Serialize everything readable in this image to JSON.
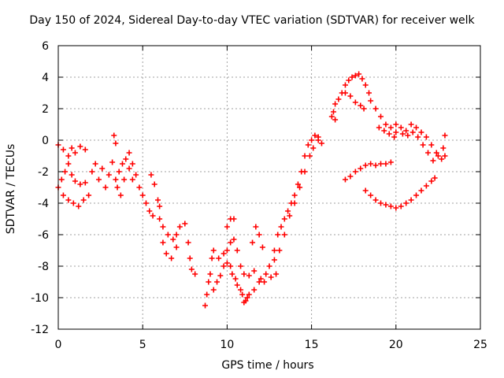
{
  "chart_data": {
    "type": "scatter",
    "title": "Day 150 of 2024, Sidereal Day-to-day VTEC variation (SDTVAR) for receiver welk",
    "xlabel": "GPS time / hours",
    "ylabel": "SDTVAR / TECUs",
    "xlim": [
      0,
      25
    ],
    "ylim": [
      -12,
      6
    ],
    "xticks": [
      "0",
      "5",
      "10",
      "15",
      "20",
      "25"
    ],
    "yticks": [
      "-12",
      "-10",
      "-8",
      "-6",
      "-4",
      "-2",
      "0",
      "2",
      "4",
      "6"
    ],
    "grid": true,
    "marker": "+",
    "color": "#ff0000",
    "series": [
      {
        "points": [
          [
            0.0,
            -0.3
          ],
          [
            0.3,
            -0.6
          ],
          [
            0.6,
            -1.0
          ],
          [
            0.8,
            -0.5
          ],
          [
            1.0,
            -0.8
          ],
          [
            1.3,
            -0.4
          ],
          [
            1.6,
            -0.6
          ],
          [
            0.0,
            -3.0
          ],
          [
            0.2,
            -2.5
          ],
          [
            0.4,
            -2.0
          ],
          [
            0.6,
            -1.5
          ],
          [
            0.8,
            -2.2
          ],
          [
            1.0,
            -2.6
          ],
          [
            1.3,
            -2.8
          ],
          [
            1.6,
            -2.7
          ],
          [
            0.3,
            -3.5
          ],
          [
            0.6,
            -3.8
          ],
          [
            0.9,
            -4.0
          ],
          [
            1.2,
            -4.2
          ],
          [
            1.5,
            -3.8
          ],
          [
            1.8,
            -3.5
          ],
          [
            2.0,
            -2.0
          ],
          [
            2.2,
            -1.5
          ],
          [
            2.4,
            -2.5
          ],
          [
            2.6,
            -1.8
          ],
          [
            2.8,
            -3.0
          ],
          [
            3.0,
            -2.2
          ],
          [
            3.2,
            -1.4
          ],
          [
            3.4,
            -2.5
          ],
          [
            3.6,
            -2.0
          ],
          [
            3.8,
            -1.5
          ],
          [
            4.0,
            -1.2
          ],
          [
            4.2,
            -1.8
          ],
          [
            4.4,
            -2.5
          ],
          [
            3.3,
            0.3
          ],
          [
            3.4,
            -0.2
          ],
          [
            3.5,
            -3.0
          ],
          [
            3.7,
            -3.5
          ],
          [
            3.9,
            -2.5
          ],
          [
            4.2,
            -0.8
          ],
          [
            4.4,
            -1.5
          ],
          [
            4.6,
            -2.2
          ],
          [
            4.8,
            -3.0
          ],
          [
            5.0,
            -3.5
          ],
          [
            5.2,
            -4.0
          ],
          [
            5.4,
            -4.5
          ],
          [
            5.6,
            -4.8
          ],
          [
            5.5,
            -2.2
          ],
          [
            5.7,
            -2.8
          ],
          [
            5.9,
            -3.8
          ],
          [
            6.0,
            -4.2
          ],
          [
            6.0,
            -5.0
          ],
          [
            6.2,
            -5.5
          ],
          [
            6.5,
            -6.0
          ],
          [
            6.8,
            -6.3
          ],
          [
            7.0,
            -6.0
          ],
          [
            7.2,
            -5.5
          ],
          [
            6.2,
            -6.5
          ],
          [
            6.4,
            -7.2
          ],
          [
            6.7,
            -7.5
          ],
          [
            7.0,
            -6.8
          ],
          [
            7.5,
            -5.3
          ],
          [
            7.7,
            -6.5
          ],
          [
            7.8,
            -7.5
          ],
          [
            7.9,
            -8.2
          ],
          [
            8.1,
            -8.5
          ],
          [
            8.7,
            -10.5
          ],
          [
            8.8,
            -9.8
          ],
          [
            8.9,
            -9.0
          ],
          [
            9.0,
            -8.5
          ],
          [
            9.1,
            -7.5
          ],
          [
            9.2,
            -7.0
          ],
          [
            9.2,
            -9.5
          ],
          [
            9.4,
            -9.0
          ],
          [
            9.6,
            -8.6
          ],
          [
            9.8,
            -8.0
          ],
          [
            10.0,
            -7.0
          ],
          [
            10.2,
            -6.5
          ],
          [
            10.4,
            -6.3
          ],
          [
            9.5,
            -7.5
          ],
          [
            9.8,
            -7.2
          ],
          [
            10.0,
            -7.8
          ],
          [
            10.3,
            -8.5
          ],
          [
            10.6,
            -9.2
          ],
          [
            10.9,
            -9.8
          ],
          [
            11.1,
            -10.2
          ],
          [
            11.3,
            -9.8
          ],
          [
            11.6,
            -9.5
          ],
          [
            11.9,
            -9.0
          ],
          [
            12.2,
            -9.0
          ],
          [
            10.2,
            -8.0
          ],
          [
            10.5,
            -8.8
          ],
          [
            10.8,
            -9.5
          ],
          [
            11.0,
            -10.3
          ],
          [
            11.2,
            -10.0
          ],
          [
            10.0,
            -5.5
          ],
          [
            10.2,
            -5.0
          ],
          [
            10.4,
            -5.0
          ],
          [
            10.6,
            -7.0
          ],
          [
            10.8,
            -8.0
          ],
          [
            11.0,
            -8.5
          ],
          [
            11.3,
            -8.6
          ],
          [
            11.6,
            -8.3
          ],
          [
            11.5,
            -6.5
          ],
          [
            11.7,
            -5.5
          ],
          [
            11.9,
            -6.0
          ],
          [
            12.1,
            -6.8
          ],
          [
            12.0,
            -8.8
          ],
          [
            12.3,
            -8.5
          ],
          [
            12.6,
            -8.7
          ],
          [
            12.9,
            -8.5
          ],
          [
            12.8,
            -7.0
          ],
          [
            13.0,
            -6.0
          ],
          [
            13.2,
            -5.5
          ],
          [
            13.4,
            -5.0
          ],
          [
            13.6,
            -4.5
          ],
          [
            13.8,
            -4.0
          ],
          [
            14.0,
            -3.5
          ],
          [
            14.2,
            -2.8
          ],
          [
            14.4,
            -2.0
          ],
          [
            14.6,
            -1.0
          ],
          [
            14.8,
            -0.3
          ],
          [
            15.0,
            0.0
          ],
          [
            15.2,
            0.3
          ],
          [
            15.4,
            0.2
          ],
          [
            15.6,
            -0.2
          ],
          [
            12.5,
            -8.0
          ],
          [
            12.8,
            -7.6
          ],
          [
            13.1,
            -7.0
          ],
          [
            13.4,
            -6.0
          ],
          [
            13.7,
            -4.8
          ],
          [
            14.0,
            -4.0
          ],
          [
            14.3,
            -3.0
          ],
          [
            14.6,
            -2.0
          ],
          [
            14.9,
            -1.0
          ],
          [
            15.1,
            -0.5
          ],
          [
            15.4,
            0.0
          ],
          [
            16.2,
            1.5
          ],
          [
            16.3,
            1.8
          ],
          [
            16.4,
            1.3
          ],
          [
            16.4,
            2.3
          ],
          [
            16.6,
            2.6
          ],
          [
            16.8,
            3.0
          ],
          [
            17.0,
            3.5
          ],
          [
            17.2,
            3.8
          ],
          [
            17.4,
            4.0
          ],
          [
            17.6,
            4.1
          ],
          [
            17.8,
            4.2
          ],
          [
            18.0,
            3.9
          ],
          [
            18.2,
            3.5
          ],
          [
            18.4,
            3.0
          ],
          [
            17.0,
            3.0
          ],
          [
            17.3,
            2.8
          ],
          [
            17.6,
            2.4
          ],
          [
            17.9,
            2.2
          ],
          [
            18.1,
            2.0
          ],
          [
            18.5,
            2.5
          ],
          [
            18.8,
            2.0
          ],
          [
            19.1,
            1.5
          ],
          [
            19.4,
            1.0
          ],
          [
            19.7,
            0.8
          ],
          [
            20.0,
            0.5
          ],
          [
            19.0,
            0.8
          ],
          [
            19.3,
            0.6
          ],
          [
            19.6,
            0.4
          ],
          [
            19.9,
            0.2
          ],
          [
            20.0,
            1.0
          ],
          [
            20.3,
            0.8
          ],
          [
            20.6,
            0.6
          ],
          [
            20.9,
            1.0
          ],
          [
            21.2,
            0.8
          ],
          [
            21.5,
            0.5
          ],
          [
            21.8,
            0.2
          ],
          [
            22.1,
            -0.3
          ],
          [
            22.4,
            -0.8
          ],
          [
            22.7,
            -1.2
          ],
          [
            22.9,
            -1.0
          ],
          [
            20.4,
            0.4
          ],
          [
            20.7,
            0.3
          ],
          [
            21.0,
            0.5
          ],
          [
            21.3,
            0.2
          ],
          [
            21.6,
            -0.3
          ],
          [
            21.9,
            -0.8
          ],
          [
            22.2,
            -1.3
          ],
          [
            22.5,
            -1.0
          ],
          [
            22.8,
            -0.5
          ],
          [
            22.9,
            0.3
          ],
          [
            17.0,
            -2.5
          ],
          [
            17.3,
            -2.3
          ],
          [
            17.6,
            -2.0
          ],
          [
            17.9,
            -1.8
          ],
          [
            18.2,
            -1.6
          ],
          [
            18.5,
            -1.5
          ],
          [
            18.8,
            -1.6
          ],
          [
            19.1,
            -1.5
          ],
          [
            19.4,
            -1.5
          ],
          [
            19.7,
            -1.4
          ],
          [
            18.2,
            -3.2
          ],
          [
            18.5,
            -3.5
          ],
          [
            18.8,
            -3.8
          ],
          [
            19.1,
            -4.0
          ],
          [
            19.4,
            -4.1
          ],
          [
            19.7,
            -4.2
          ],
          [
            20.0,
            -4.3
          ],
          [
            20.3,
            -4.2
          ],
          [
            20.6,
            -4.0
          ],
          [
            20.9,
            -3.8
          ],
          [
            21.2,
            -3.5
          ],
          [
            21.5,
            -3.2
          ],
          [
            21.8,
            -2.9
          ],
          [
            22.1,
            -2.6
          ],
          [
            22.3,
            -2.4
          ]
        ]
      }
    ]
  }
}
